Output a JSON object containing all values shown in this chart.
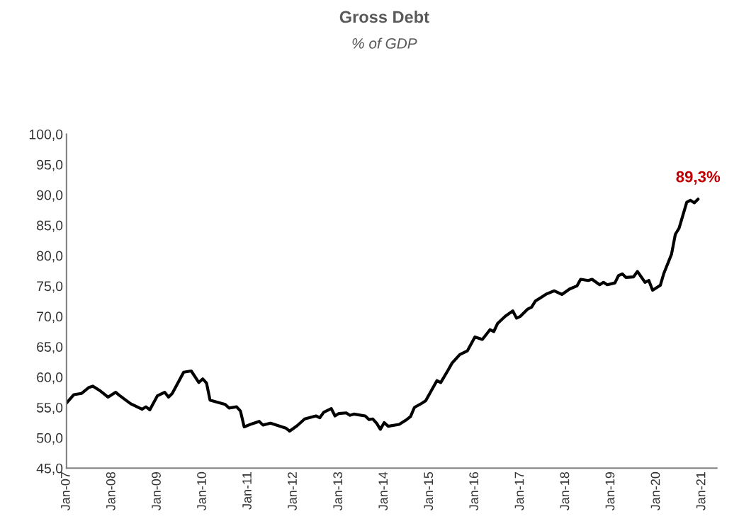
{
  "chart_data": {
    "type": "line",
    "title": "Gross Debt",
    "subtitle": "% of GDP",
    "x": [
      "2007-01",
      "2007-03",
      "2007-05",
      "2007-07",
      "2007-08",
      "2007-10",
      "2007-12",
      "2008-02",
      "2008-03",
      "2008-06",
      "2008-07",
      "2008-09",
      "2008-10",
      "2008-11",
      "2009-01",
      "2009-03",
      "2009-04",
      "2009-05",
      "2009-08",
      "2009-10",
      "2009-12",
      "2010-01",
      "2010-02",
      "2010-03",
      "2010-07",
      "2010-08",
      "2010-10",
      "2010-11",
      "2010-12",
      "2011-02",
      "2011-04",
      "2011-05",
      "2011-07",
      "2011-08",
      "2011-10",
      "2011-11",
      "2011-12",
      "2012-02",
      "2012-04",
      "2012-07",
      "2012-08",
      "2012-09",
      "2012-11",
      "2012-12",
      "2013-01",
      "2013-03",
      "2013-04",
      "2013-05",
      "2013-08",
      "2013-09",
      "2013-10",
      "2013-11",
      "2013-12",
      "2014-01",
      "2014-02",
      "2014-05",
      "2014-07",
      "2014-08",
      "2014-09",
      "2014-11",
      "2014-12",
      "2015-03",
      "2015-04",
      "2015-06",
      "2015-07",
      "2015-09",
      "2015-11",
      "2016-01",
      "2016-03",
      "2016-05",
      "2016-06",
      "2016-07",
      "2016-09",
      "2016-11",
      "2016-12",
      "2017-01",
      "2017-03",
      "2017-04",
      "2017-05",
      "2017-08",
      "2017-10",
      "2017-12",
      "2018-02",
      "2018-04",
      "2018-05",
      "2018-07",
      "2018-08",
      "2018-10",
      "2018-11",
      "2018-12",
      "2019-02",
      "2019-03",
      "2019-04",
      "2019-05",
      "2019-07",
      "2019-08",
      "2019-10",
      "2019-11",
      "2019-12",
      "2020-02",
      "2020-03",
      "2020-05",
      "2020-06",
      "2020-07",
      "2020-09",
      "2020-10",
      "2020-11",
      "2020-12"
    ],
    "series": [
      {
        "color": "#000000",
        "values": [
          55.7,
          57.1,
          57.3,
          58.3,
          58.5,
          57.7,
          56.7,
          57.5,
          57.0,
          55.6,
          55.3,
          54.7,
          55.1,
          54.6,
          56.9,
          57.5,
          56.7,
          57.3,
          60.8,
          61.0,
          59.1,
          59.7,
          59.0,
          56.2,
          55.5,
          54.9,
          55.1,
          54.4,
          51.8,
          52.3,
          52.7,
          52.1,
          52.4,
          52.2,
          51.8,
          51.6,
          51.1,
          52.0,
          53.1,
          53.6,
          53.3,
          54.2,
          54.8,
          53.6,
          54.0,
          54.1,
          53.7,
          53.9,
          53.6,
          53.0,
          53.1,
          52.4,
          51.4,
          52.5,
          51.9,
          52.2,
          53.0,
          53.5,
          55.0,
          55.7,
          56.1,
          59.4,
          59.1,
          61.2,
          62.3,
          63.7,
          64.3,
          66.6,
          66.2,
          67.8,
          67.5,
          68.8,
          70.0,
          70.9,
          69.7,
          70.0,
          71.2,
          71.5,
          72.5,
          73.7,
          74.2,
          73.6,
          74.5,
          75.0,
          76.1,
          75.9,
          76.1,
          75.2,
          75.6,
          75.2,
          75.5,
          76.7,
          77.0,
          76.4,
          76.5,
          77.4,
          75.6,
          75.9,
          74.3,
          75.1,
          77.1,
          80.2,
          83.5,
          84.5,
          88.8,
          89.1,
          88.7,
          89.3
        ]
      }
    ],
    "xlim": [
      "2007-01",
      "2021-05"
    ],
    "xticks": [
      {
        "value": "2007-01",
        "label": "Jan-07"
      },
      {
        "value": "2008-01",
        "label": "Jan-08"
      },
      {
        "value": "2009-01",
        "label": "Jan-09"
      },
      {
        "value": "2010-01",
        "label": "Jan-10"
      },
      {
        "value": "2011-01",
        "label": "Jan-11"
      },
      {
        "value": "2012-01",
        "label": "Jan-12"
      },
      {
        "value": "2013-01",
        "label": "Jan-13"
      },
      {
        "value": "2014-01",
        "label": "Jan-14"
      },
      {
        "value": "2015-01",
        "label": "Jan-15"
      },
      {
        "value": "2016-01",
        "label": "Jan-16"
      },
      {
        "value": "2017-01",
        "label": "Jan-17"
      },
      {
        "value": "2018-01",
        "label": "Jan-18"
      },
      {
        "value": "2019-01",
        "label": "Jan-19"
      },
      {
        "value": "2020-01",
        "label": "Jan-20"
      },
      {
        "value": "2021-01",
        "label": "Jan-21"
      }
    ],
    "ylim": [
      45,
      100
    ],
    "yticks": [
      {
        "value": 45,
        "label": "45,0"
      },
      {
        "value": 50,
        "label": "50,0"
      },
      {
        "value": 55,
        "label": "55,0"
      },
      {
        "value": 60,
        "label": "60,0"
      },
      {
        "value": 65,
        "label": "65,0"
      },
      {
        "value": 70,
        "label": "70,0"
      },
      {
        "value": 75,
        "label": "75,0"
      },
      {
        "value": 80,
        "label": "80,0"
      },
      {
        "value": 85,
        "label": "85,0"
      },
      {
        "value": 90,
        "label": "90,0"
      },
      {
        "value": 95,
        "label": "95,0"
      },
      {
        "value": 100,
        "label": "100,0"
      }
    ],
    "annotations": [
      {
        "text": "89,3%",
        "x": "2020-12",
        "y": 89.3
      }
    ],
    "grid": false,
    "legend": false,
    "marker": "none",
    "line_style": "solid"
  }
}
